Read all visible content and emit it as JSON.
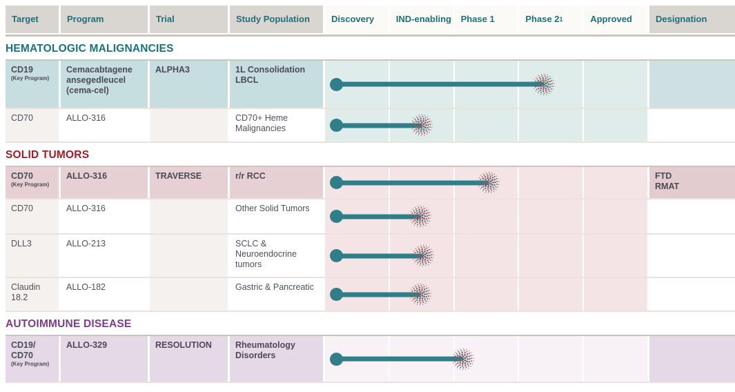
{
  "colors": {
    "header_text": "#1b727c",
    "hematologic_title": "#17727c",
    "solid_tumors_title": "#a21d26",
    "autoimmune_title": "#7d3b8c",
    "bar_teal": "#2e7f8a",
    "burst_red": "#cc4343",
    "key_row_hema_bg": "#c7dee0",
    "key_row_solid_bg": "#e7d0d3",
    "key_row_auto_bg": "#e5d9e8"
  },
  "header": {
    "columns": [
      "Target",
      "Program",
      "Trial",
      "Study Population"
    ],
    "phases": [
      "Discovery",
      "IND-enabling",
      "Phase 1",
      "Phase 2",
      "Approved"
    ],
    "phase2_sup": "1",
    "designation": "Designation"
  },
  "sections": [
    {
      "title": "HEMATOLOGIC MALIGNANCIES",
      "rows": [
        {
          "target": "CD19",
          "note": "(Key Program)",
          "program": "Cemacabtagene ansegedleucel (cema-cel)",
          "trial": "ALPHA3",
          "study_population": "1L Consolidation LBCL",
          "designation": "",
          "key_program": true,
          "phase_reached": "Phase 2",
          "progress_pct": 65.3
        },
        {
          "target": "CD70",
          "note": "",
          "program": "ALLO-316",
          "trial": "",
          "study_population": "CD70+ Heme Malignancies",
          "designation": "",
          "key_program": false,
          "phase_reached": "IND-enabling",
          "progress_pct": 27.4
        }
      ]
    },
    {
      "title": "SOLID TUMORS",
      "rows": [
        {
          "target": "CD70",
          "note": "(Key Program)",
          "program": "ALLO-316",
          "trial": "TRAVERSE",
          "study_population": "r/r RCC",
          "designation": "FTD\nRMAT",
          "key_program": true,
          "phase_reached": "Phase 1",
          "progress_pct": 48.2
        },
        {
          "target": "CD70",
          "note": "",
          "program": "ALLO-316",
          "trial": "",
          "study_population": "Other Solid Tumors",
          "designation": "",
          "key_program": false,
          "phase_reached": "IND-enabling",
          "progress_pct": 27
        },
        {
          "target": "DLL3",
          "note": "",
          "program": "ALLO-213",
          "trial": "",
          "study_population": "SCLC & Neuroendocrine tumors",
          "designation": "",
          "key_program": false,
          "phase_reached": "IND-enabling",
          "progress_pct": 27.8
        },
        {
          "target": "Claudin 18.2",
          "note": "",
          "program": "ALLO-182",
          "trial": "",
          "study_population": "Gastric & Pancreatic",
          "designation": "",
          "key_program": false,
          "phase_reached": "IND-enabling",
          "progress_pct": 27
        }
      ]
    },
    {
      "title": "AUTOIMMUNE DISEASE",
      "rows": [
        {
          "target": "CD19/\nCD70",
          "note": "(Key Program)",
          "program": "ALLO-329",
          "trial": "RESOLUTION",
          "study_population": "Rheumatology Disorders",
          "designation": "",
          "key_program": true,
          "phase_reached": "Phase 1",
          "progress_pct": 40.3
        }
      ]
    }
  ],
  "chart_data": {
    "type": "table",
    "title": "Clinical development pipeline",
    "columns": [
      "Target",
      "Program",
      "Trial",
      "Study Population",
      "Discovery",
      "IND-enabling",
      "Phase 1",
      "Phase 2",
      "Approved",
      "Designation"
    ],
    "phases": [
      "Discovery",
      "IND-enabling",
      "Phase 1",
      "Phase 2",
      "Approved"
    ],
    "rows": [
      {
        "section": "HEMATOLOGIC MALIGNANCIES",
        "target": "CD19",
        "key_program": true,
        "program": "Cemacabtagene ansegedleucel (cema-cel)",
        "trial": "ALPHA3",
        "study_population": "1L Consolidation LBCL",
        "phase_reached": "Phase 2",
        "designation": ""
      },
      {
        "section": "HEMATOLOGIC MALIGNANCIES",
        "target": "CD70",
        "key_program": false,
        "program": "ALLO-316",
        "trial": "",
        "study_population": "CD70+ Heme Malignancies",
        "phase_reached": "IND-enabling",
        "designation": ""
      },
      {
        "section": "SOLID TUMORS",
        "target": "CD70",
        "key_program": true,
        "program": "ALLO-316",
        "trial": "TRAVERSE",
        "study_population": "r/r RCC",
        "phase_reached": "Phase 1",
        "designation": "FTD RMAT"
      },
      {
        "section": "SOLID TUMORS",
        "target": "CD70",
        "key_program": false,
        "program": "ALLO-316",
        "trial": "",
        "study_population": "Other Solid Tumors",
        "phase_reached": "IND-enabling",
        "designation": ""
      },
      {
        "section": "SOLID TUMORS",
        "target": "DLL3",
        "key_program": false,
        "program": "ALLO-213",
        "trial": "",
        "study_population": "SCLC & Neuroendocrine tumors",
        "phase_reached": "IND-enabling",
        "designation": ""
      },
      {
        "section": "SOLID TUMORS",
        "target": "Claudin 18.2",
        "key_program": false,
        "program": "ALLO-182",
        "trial": "",
        "study_population": "Gastric & Pancreatic",
        "phase_reached": "IND-enabling",
        "designation": ""
      },
      {
        "section": "AUTOIMMUNE DISEASE",
        "target": "CD19/CD70",
        "key_program": true,
        "program": "ALLO-329",
        "trial": "RESOLUTION",
        "study_population": "Rheumatology Disorders",
        "phase_reached": "Phase 1",
        "designation": ""
      }
    ]
  }
}
